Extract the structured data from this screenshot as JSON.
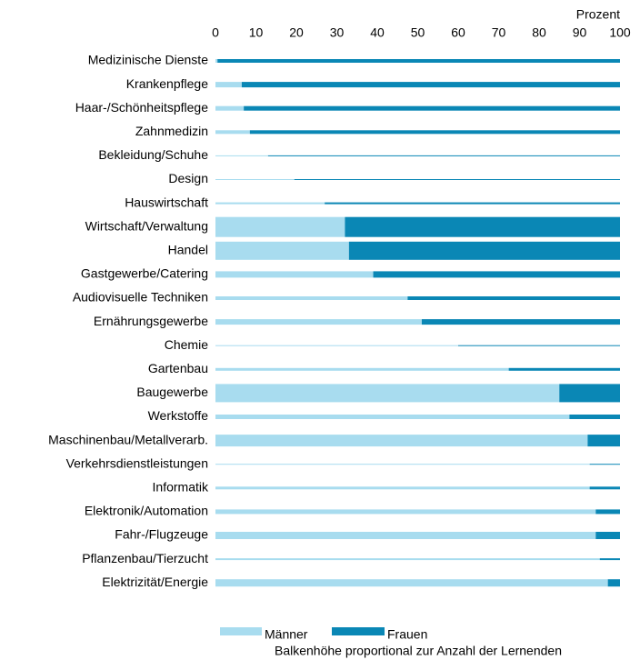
{
  "chart_data": {
    "type": "stacked-barh",
    "xlabel": "Prozent",
    "note": "Balkenhöhe proportional zur Anzahl der Lernenden",
    "categories": [
      "Medizinische Dienste",
      "Krankenpflege",
      "Haar-/Schönheitspflege",
      "Zahnmedizin",
      "Bekleidung/Schuhe",
      "Design",
      "Hauswirtschaft",
      "Wirtschaft/Verwaltung",
      "Handel",
      "Gastgewerbe/Catering",
      "Audiovisuelle Techniken",
      "Ernährungsgewerbe",
      "Chemie",
      "Gartenbau",
      "Baugewerbe",
      "Werkstoffe",
      "Maschinenbau/Metallverarb.",
      "Verkehrsdienstleistungen",
      "Informatik",
      "Elektronik/Automation",
      "Fahr-/Flugzeuge",
      "Pflanzenbau/Tierzucht",
      "Elektrizität/Energie"
    ],
    "sizes": [
      4,
      6,
      5,
      4,
      1,
      1,
      2,
      22,
      20,
      7,
      4,
      6,
      1,
      3,
      20,
      5,
      13,
      1,
      3,
      5,
      8,
      2,
      8
    ],
    "series": [
      {
        "name": "Männer",
        "color": "#a8dcef",
        "values": [
          0.5,
          6.5,
          7,
          8.5,
          13,
          19.5,
          27,
          32,
          33,
          39,
          47.5,
          51,
          60,
          72.5,
          85,
          87.5,
          92,
          92.5,
          92.5,
          94,
          94,
          95,
          97
        ]
      },
      {
        "name": "Frauen",
        "color": "#0a87b5",
        "values": [
          99.5,
          93.5,
          93,
          91.5,
          87,
          80.5,
          73,
          68,
          67,
          61,
          52.5,
          49,
          40,
          27.5,
          15,
          12.5,
          8,
          7.5,
          7.5,
          6,
          6,
          5,
          3
        ]
      }
    ],
    "xlim": [
      0,
      100
    ],
    "xticks": [
      0,
      10,
      20,
      30,
      40,
      50,
      60,
      70,
      80,
      90,
      100
    ]
  }
}
